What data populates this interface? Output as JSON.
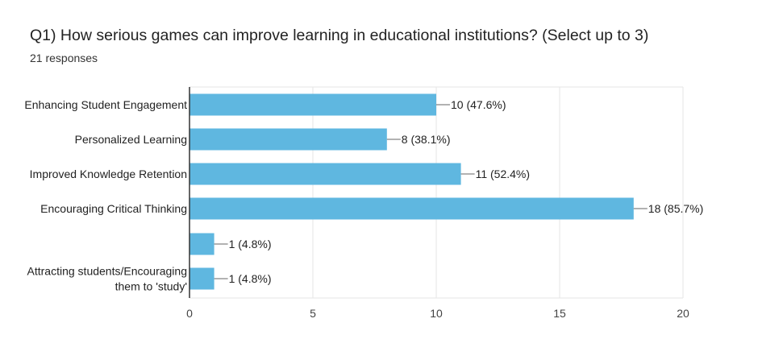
{
  "question": {
    "title": "Q1) How serious games can improve learning in educational institutions?   (Select up to 3)",
    "responses": "21 responses"
  },
  "colors": {
    "bar": "#5fb7e0"
  },
  "chart_data": {
    "type": "bar",
    "orientation": "horizontal",
    "categories": [
      [
        "Enhancing Student Engagement"
      ],
      [
        "Personalized Learning"
      ],
      [
        "Improved Knowledge Retention"
      ],
      [
        "Encouraging Critical Thinking"
      ],
      [
        ""
      ],
      [
        "Attracting students/Encouraging",
        "them to 'study'"
      ]
    ],
    "values": [
      10,
      8,
      11,
      18,
      1,
      1
    ],
    "value_labels": [
      "10 (47.6%)",
      "8 (38.1%)",
      "11 (52.4%)",
      "18 (85.7%)",
      "1 (4.8%)",
      "1 (4.8%)"
    ],
    "xlim": [
      0,
      20
    ],
    "xticks": [
      0,
      5,
      10,
      15,
      20
    ],
    "grid": true
  }
}
